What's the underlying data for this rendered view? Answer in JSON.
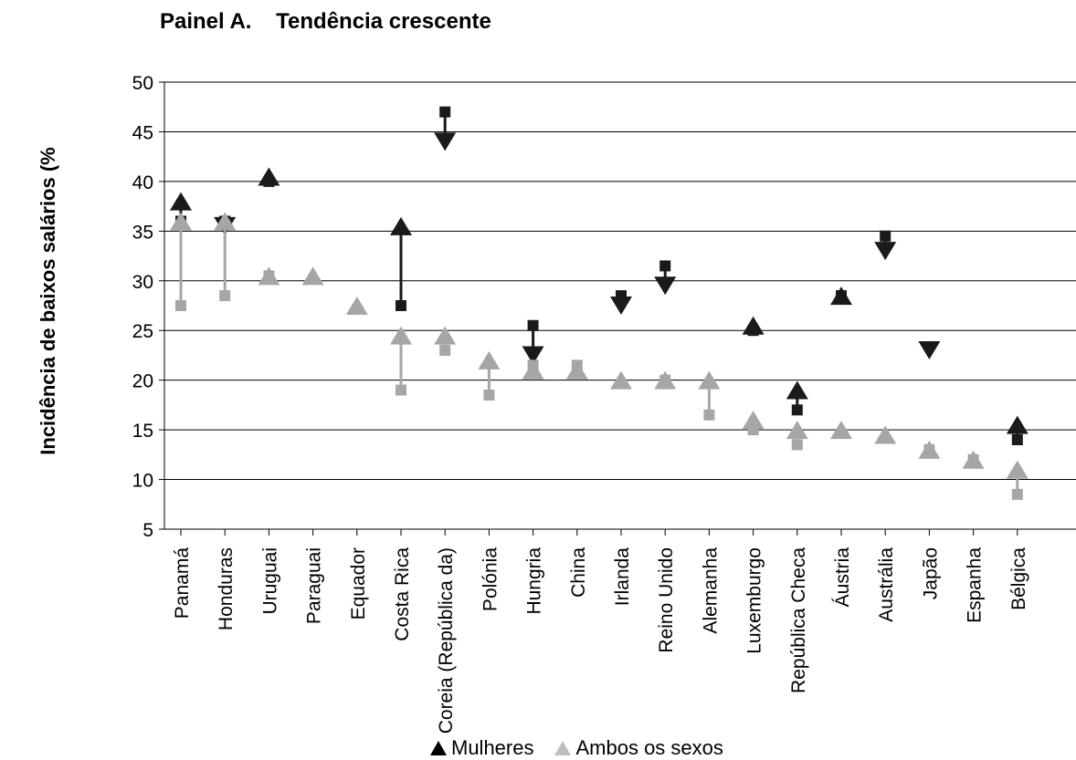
{
  "chart_data": {
    "type": "scatter",
    "title": "Painel A.    Tendência crescente",
    "ylabel": "Incidência de baixos salários (%",
    "ylim": [
      5,
      50
    ],
    "yticks": [
      5,
      10,
      15,
      20,
      25,
      30,
      35,
      40,
      45,
      50
    ],
    "categories": [
      "Panamá",
      "Honduras",
      "Uruguai",
      "Paraguai",
      "Equador",
      "Costa Rica",
      "Coreia (República da)",
      "Polónia",
      "Hungria",
      "China",
      "Irlanda",
      "Reino Unido",
      "Alemanha",
      "Luxemburgo",
      "República Checa",
      "Áustria",
      "Austrália",
      "Japão",
      "Espanha",
      "Bélgica"
    ],
    "series": [
      {
        "name": "Mulheres",
        "color": "#1a1a1a",
        "start": [
          36,
          36,
          40,
          null,
          null,
          27.5,
          47,
          null,
          25.5,
          null,
          28.5,
          31.5,
          null,
          25,
          17,
          28.5,
          34.5,
          null,
          null,
          14
        ],
        "end": [
          38,
          35.5,
          40.5,
          null,
          null,
          35.5,
          44,
          null,
          22.5,
          null,
          27.5,
          29.5,
          null,
          25.5,
          19,
          28.5,
          33,
          23,
          null,
          15.5
        ]
      },
      {
        "name": "Ambos os sexos",
        "color": "#a6a6a6",
        "start": [
          27.5,
          28.5,
          30.5,
          null,
          null,
          19,
          23,
          18.5,
          21.5,
          21.5,
          null,
          20,
          16.5,
          15,
          13.5,
          null,
          null,
          13,
          12,
          8.5
        ],
        "end": [
          36,
          36,
          30.5,
          30.5,
          27.5,
          24.5,
          24.5,
          22,
          21,
          21,
          20,
          20,
          20,
          16,
          15,
          15,
          14.5,
          13,
          12,
          11
        ]
      }
    ],
    "legend": [
      "Mulheres",
      "Ambos os sexos"
    ]
  }
}
